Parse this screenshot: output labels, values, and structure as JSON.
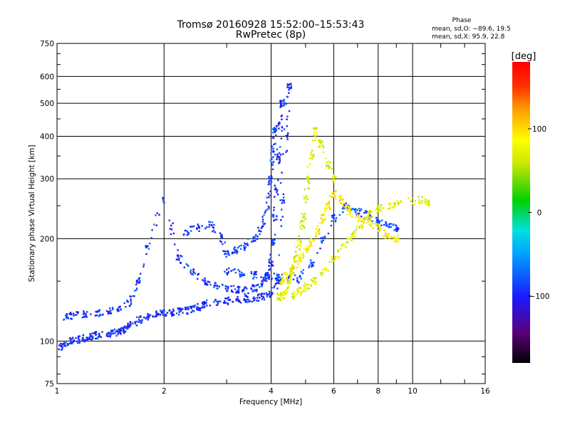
{
  "chart_data": {
    "type": "scatter",
    "title": "Tromsø 20160928 15:52:00–15:53:43",
    "subtitle": "RwPretec (8p)",
    "xlabel": "Frequency [MHz]",
    "ylabel": "Stationary phase Virtual Height [km]",
    "x_scale": "log",
    "y_scale": "log",
    "xlim": [
      1,
      16
    ],
    "ylim": [
      75,
      750
    ],
    "x_ticks": [
      1,
      2,
      4,
      6,
      8,
      10,
      16
    ],
    "y_ticks": [
      75,
      100,
      200,
      300,
      400,
      500,
      600,
      750
    ],
    "grid": true,
    "phase_legend": {
      "title": "Phase",
      "line_o": "mean, sd,O: −89.6, 19.5",
      "line_x": "mean, sd,X:  95.9, 22.8"
    },
    "colorbar": {
      "unit": "[deg]",
      "ticks": [
        100,
        0,
        -100
      ],
      "tick_labels": [
        "100",
        "0",
        "−100"
      ],
      "range": [
        -180,
        180
      ],
      "colormap": "rainbow"
    },
    "series": [
      {
        "phase_deg": -95,
        "x": [
          1.02,
          1.05,
          1.1,
          1.15,
          1.2,
          1.25,
          1.3,
          1.4,
          1.45,
          1.5,
          1.55,
          1.6,
          1.7,
          1.8,
          1.9,
          2.0,
          2.1,
          2.2,
          2.3,
          2.4,
          2.5,
          2.6,
          2.8,
          3.0,
          3.2,
          3.4,
          3.6,
          3.8,
          4.0,
          4.2,
          4.3,
          4.4,
          4.5
        ],
        "y": [
          96,
          98,
          100,
          101,
          102,
          103,
          104,
          105,
          106,
          107,
          108,
          110,
          115,
          118,
          120,
          121,
          121,
          122,
          123,
          124,
          126,
          128,
          130,
          131,
          132,
          133,
          134,
          135,
          138,
          150,
          260,
          400,
          560
        ]
      },
      {
        "phase_deg": -92,
        "x": [
          1.05,
          1.1,
          1.2,
          1.3,
          1.4,
          1.5,
          1.6,
          1.7,
          1.8,
          2.0,
          2.2,
          2.4,
          2.6,
          2.8,
          3.0,
          3.2,
          3.4,
          3.6,
          3.8,
          3.9,
          4.0,
          4.05,
          4.1,
          4.15,
          4.2,
          4.25,
          4.3
        ],
        "y": [
          118,
          119,
          120,
          121,
          122,
          125,
          130,
          150,
          190,
          260,
          175,
          160,
          150,
          145,
          143,
          142,
          141,
          143,
          148,
          155,
          170,
          195,
          230,
          280,
          350,
          430,
          500
        ]
      },
      {
        "phase_deg": -88,
        "x": [
          2.3,
          2.5,
          2.7,
          2.9,
          3.0,
          3.2,
          3.4,
          3.6,
          3.8,
          3.9,
          4.0,
          4.05,
          4.1
        ],
        "y": [
          210,
          215,
          220,
          200,
          180,
          185,
          190,
          200,
          220,
          250,
          300,
          360,
          420
        ]
      },
      {
        "phase_deg": -85,
        "x": [
          3.0,
          3.3,
          3.6,
          3.9,
          4.2,
          4.5,
          4.8,
          5.2,
          5.6,
          6.0,
          6.5,
          7.0,
          7.5,
          8.0,
          8.5,
          9.0
        ],
        "y": [
          160,
          158,
          156,
          155,
          154,
          153,
          152,
          170,
          200,
          230,
          250,
          240,
          235,
          225,
          220,
          215
        ]
      },
      {
        "phase_deg": 70,
        "x": [
          4.2,
          4.3,
          4.4,
          4.5,
          4.6,
          4.7,
          4.8,
          4.9,
          5.0,
          5.1,
          5.2,
          5.3,
          5.5,
          5.8,
          6.0
        ],
        "y": [
          135,
          136,
          140,
          150,
          160,
          175,
          195,
          220,
          260,
          300,
          350,
          420,
          380,
          330,
          300
        ]
      },
      {
        "phase_deg": 90,
        "x": [
          4.3,
          4.4,
          4.6,
          4.8,
          5.0,
          5.2,
          5.4,
          5.6,
          5.8,
          6.0,
          6.3,
          6.6,
          7.0,
          7.5,
          8.0,
          8.5,
          9.0
        ],
        "y": [
          150,
          155,
          165,
          175,
          185,
          195,
          210,
          230,
          250,
          270,
          260,
          240,
          230,
          225,
          215,
          205,
          200
        ]
      },
      {
        "phase_deg": 75,
        "x": [
          4.6,
          4.8,
          5.0,
          5.3,
          5.6,
          6.0,
          6.4,
          6.8,
          7.2,
          7.6,
          8.0,
          8.6,
          9.2,
          10.5,
          11.0
        ],
        "y": [
          136,
          140,
          145,
          150,
          160,
          175,
          190,
          205,
          220,
          235,
          245,
          250,
          255,
          260,
          255
        ]
      }
    ]
  }
}
